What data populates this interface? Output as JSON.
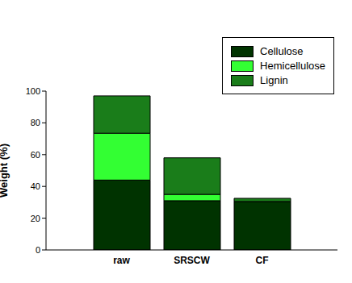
{
  "chart_data": {
    "type": "bar",
    "stacked": true,
    "categories": [
      "raw",
      "SRSCW",
      "CF"
    ],
    "series": [
      {
        "name": "Cellulose",
        "color": "#003300",
        "values": [
          44,
          31,
          30.5
        ]
      },
      {
        "name": "Hemicellulose",
        "color": "#33ff33",
        "values": [
          29.5,
          4,
          0
        ]
      },
      {
        "name": "Lignin",
        "color": "#1a7d1a",
        "values": [
          23.5,
          23,
          2
        ]
      }
    ],
    "y_label": "Weight (%)",
    "ylim": [
      0,
      100
    ],
    "yticks": [
      0,
      20,
      40,
      60,
      80,
      100
    ],
    "legend": "upper right"
  }
}
